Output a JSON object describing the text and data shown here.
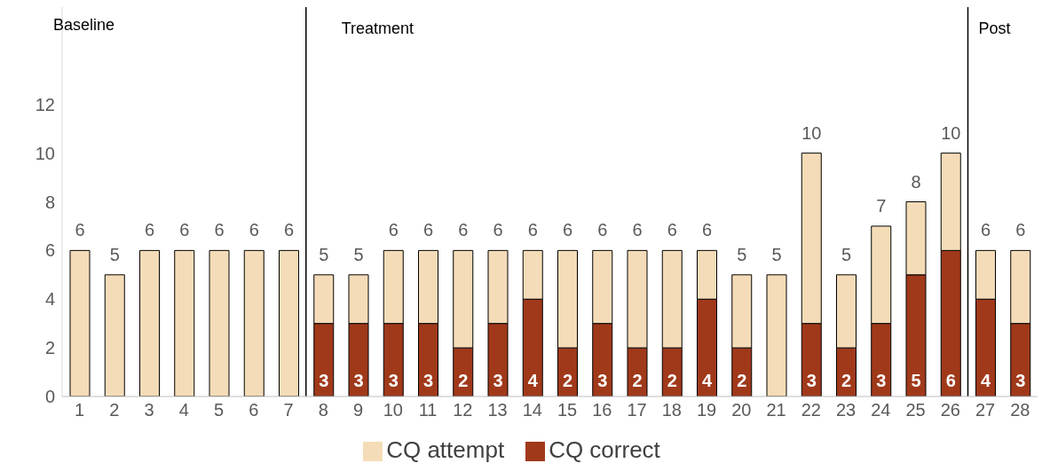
{
  "chart_data": {
    "type": "bar",
    "stacked": true,
    "x": [
      1,
      2,
      3,
      4,
      5,
      6,
      7,
      8,
      9,
      10,
      11,
      12,
      13,
      14,
      15,
      16,
      17,
      18,
      19,
      20,
      21,
      22,
      23,
      24,
      25,
      26,
      27,
      28
    ],
    "xlim": [
      0.5,
      28.5
    ],
    "xticks": [
      1,
      2,
      3,
      4,
      5,
      6,
      7,
      8,
      9,
      10,
      11,
      12,
      13,
      14,
      15,
      16,
      17,
      18,
      19,
      20,
      21,
      22,
      23,
      24,
      25,
      26,
      27,
      28
    ],
    "ylim": [
      0,
      16
    ],
    "yticks": [
      0,
      2,
      4,
      6,
      8,
      10,
      12
    ],
    "series": [
      {
        "name": "CQ correct",
        "color": "#a0391a",
        "values": [
          0,
          0,
          0,
          0,
          0,
          0,
          0,
          3,
          3,
          3,
          3,
          2,
          3,
          4,
          2,
          3,
          2,
          2,
          4,
          2,
          0,
          3,
          2,
          3,
          5,
          6,
          4,
          3
        ],
        "value_labels": [
          null,
          null,
          null,
          null,
          null,
          null,
          null,
          "3",
          "3",
          "3",
          "3",
          "2",
          "3",
          "4",
          "2",
          "3",
          "2",
          "2",
          "4",
          "2",
          null,
          "3",
          "2",
          "3",
          "5",
          "6",
          "4",
          "3"
        ]
      },
      {
        "name": "CQ attempt",
        "color": "#f5dcb8",
        "values": [
          6,
          5,
          6,
          6,
          6,
          6,
          6,
          2,
          2,
          3,
          3,
          4,
          3,
          2,
          4,
          3,
          4,
          4,
          2,
          3,
          5,
          7,
          3,
          4,
          3,
          4,
          2,
          3
        ]
      }
    ],
    "totals": [
      "6",
      "5",
      "6",
      "6",
      "6",
      "6",
      "6",
      "5",
      "5",
      "6",
      "6",
      "6",
      "6",
      "6",
      "6",
      "6",
      "6",
      "6",
      "6",
      "5",
      "5",
      "10",
      "5",
      "7",
      "8",
      "10",
      "6",
      "6"
    ],
    "ref_lines": [
      {
        "axis": "x",
        "value": 7.5,
        "label": "Treatment",
        "color": "#000000"
      },
      {
        "axis": "x",
        "value": 26.5,
        "label": "Post",
        "color": "#000000"
      }
    ],
    "annotations": [
      "Baseline"
    ],
    "grid": false,
    "legend": "bottom"
  }
}
